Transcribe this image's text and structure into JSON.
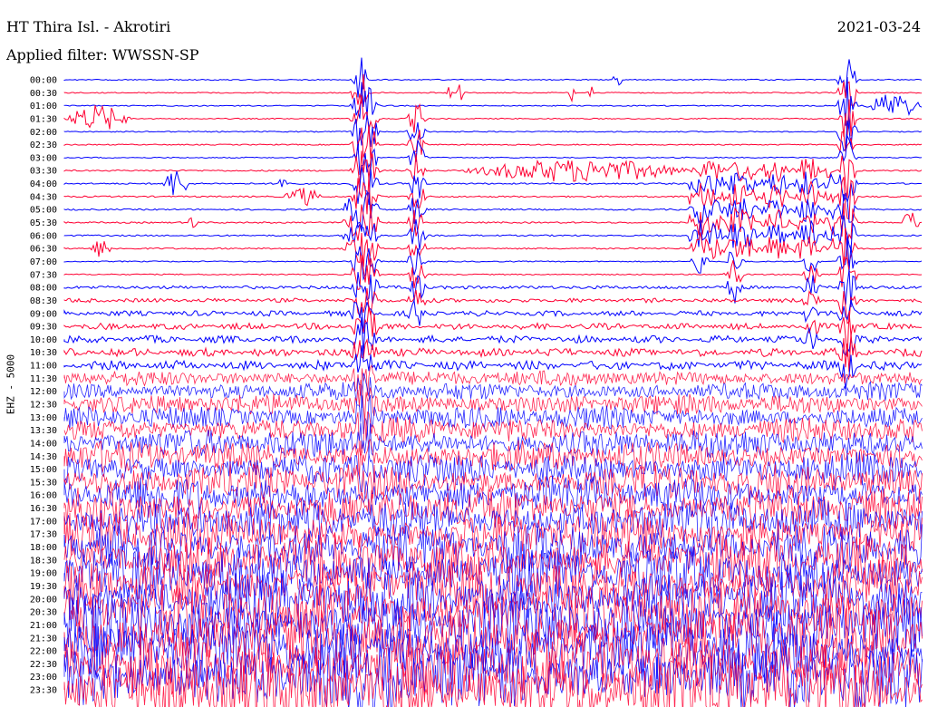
{
  "header": {
    "station": "HT Thira Isl. - Akrotiri",
    "date": "2021-03-24",
    "filter": "Applied filter: WWSSN-SP"
  },
  "chart_data": {
    "type": "line",
    "subtype": "helicorder",
    "ylabel": "EHZ - 5000",
    "row_interval_minutes": 30,
    "colors": [
      "#0000ff",
      "#ff0033"
    ],
    "rows": [
      "00:00",
      "00:30",
      "01:00",
      "01:30",
      "02:00",
      "02:30",
      "03:00",
      "03:30",
      "04:00",
      "04:30",
      "05:00",
      "05:30",
      "06:00",
      "06:30",
      "07:00",
      "07:30",
      "08:00",
      "08:30",
      "09:00",
      "09:30",
      "10:00",
      "10:30",
      "11:00",
      "11:30",
      "12:00",
      "12:30",
      "13:00",
      "13:30",
      "14:00",
      "14:30",
      "15:00",
      "15:30",
      "16:00",
      "16:30",
      "17:00",
      "17:30",
      "18:00",
      "18:30",
      "19:00",
      "19:30",
      "20:00",
      "20:30",
      "21:00",
      "21:30",
      "22:00",
      "22:30",
      "23:00",
      "23:30"
    ],
    "grid": false
  }
}
